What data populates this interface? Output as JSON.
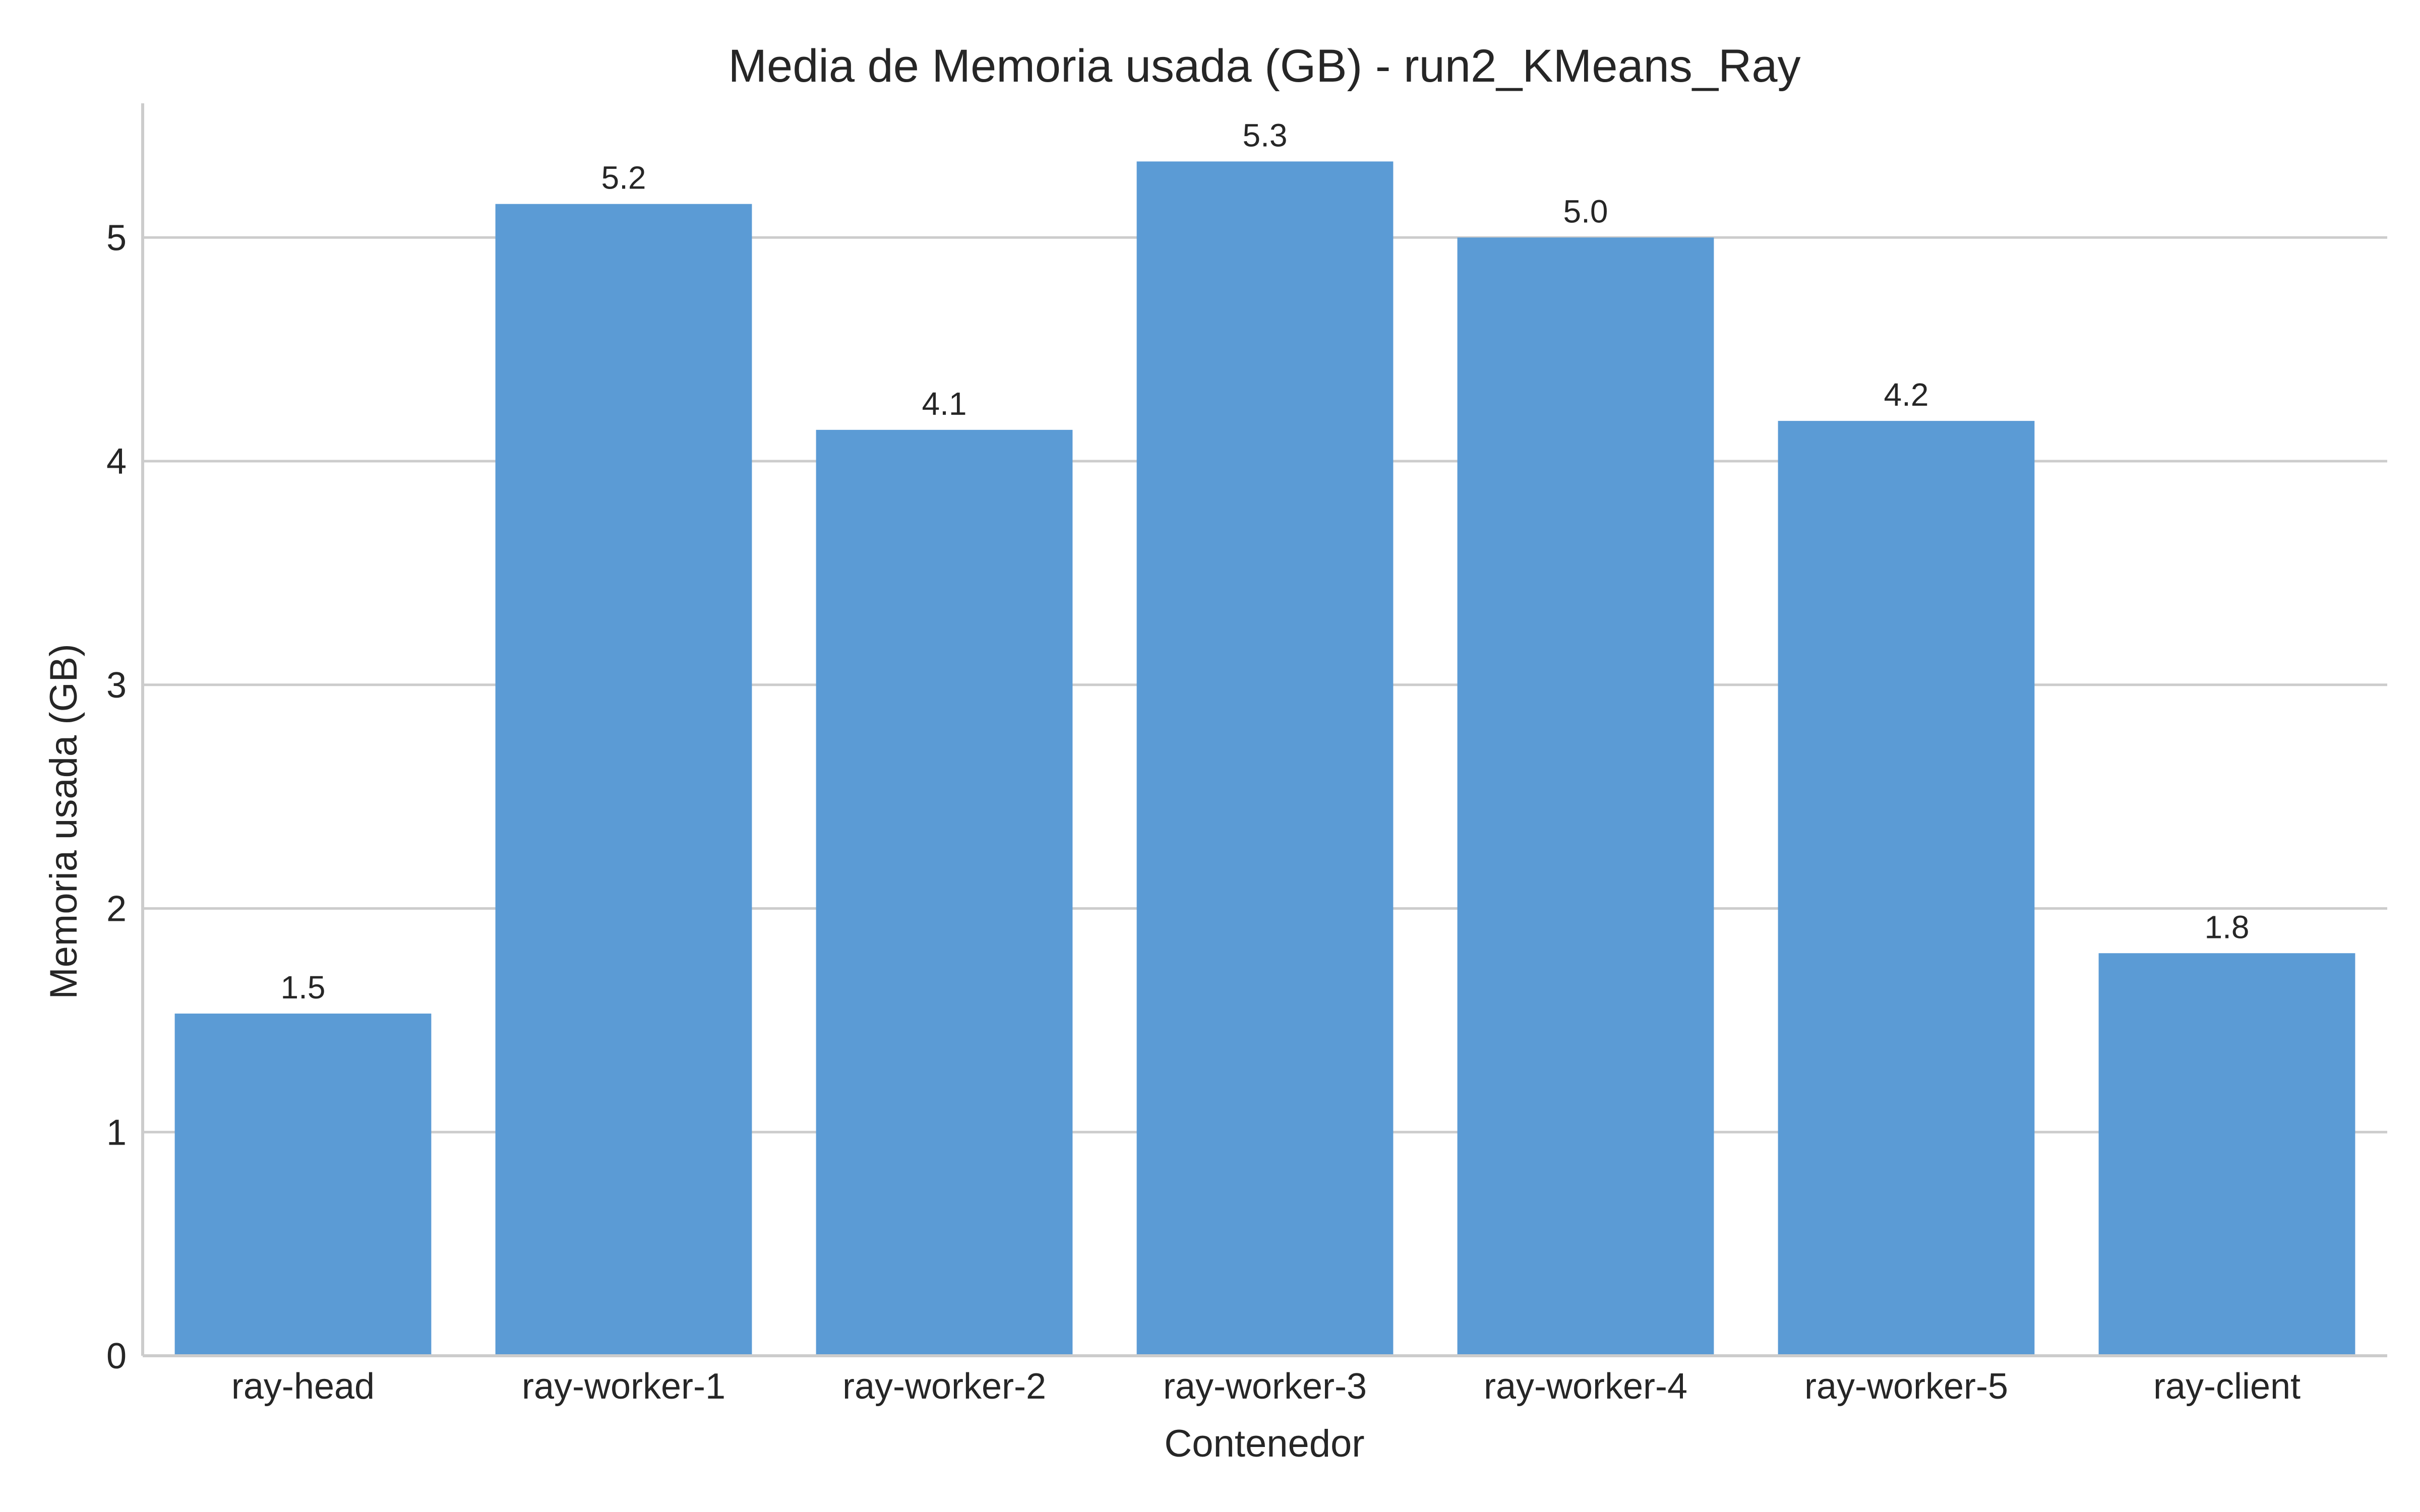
{
  "chart_data": {
    "type": "bar",
    "title": "Media de Memoria usada (GB) - run2_KMeans_Ray",
    "xlabel": "Contenedor",
    "ylabel": "Memoria usada (GB)",
    "categories": [
      "ray-head",
      "ray-worker-1",
      "ray-worker-2",
      "ray-worker-3",
      "ray-worker-4",
      "ray-worker-5",
      "ray-client"
    ],
    "values": [
      1.53,
      5.15,
      4.14,
      5.34,
      5.0,
      4.18,
      1.8
    ],
    "data_labels": [
      "1.5",
      "5.2",
      "4.1",
      "5.3",
      "5.0",
      "4.2",
      "1.8"
    ],
    "ylim": [
      0,
      5.6
    ],
    "yticks": [
      0,
      1,
      2,
      3,
      4,
      5
    ],
    "grid": "horizontal",
    "bar_color": "#5b9bd5"
  }
}
